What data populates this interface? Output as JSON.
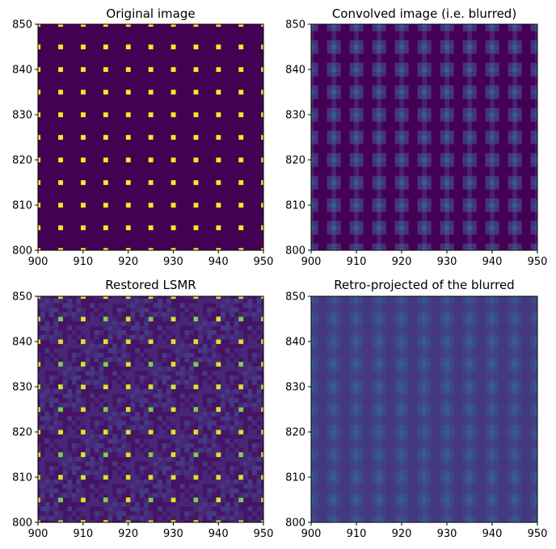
{
  "chart_data": [
    {
      "type": "heatmap",
      "title": "Original image",
      "xlim": [
        900,
        950
      ],
      "ylim": [
        800,
        850
      ],
      "xticks": [
        "900",
        "910",
        "920",
        "930",
        "940",
        "950"
      ],
      "yticks": [
        "800",
        "810",
        "820",
        "830",
        "840",
        "850"
      ],
      "colormap": "viridis",
      "pattern": "impulse grid: value 1 at every 5th pixel in x and y, 0 elsewhere",
      "spacing": 5,
      "background_value": 0.0,
      "peak_value": 1.0
    },
    {
      "type": "heatmap",
      "title": "Convolved image (i.e. blurred)",
      "xlim": [
        900,
        950
      ],
      "ylim": [
        800,
        850
      ],
      "xticks": [
        "900",
        "910",
        "920",
        "930",
        "940",
        "950"
      ],
      "yticks": [
        "800",
        "810",
        "820",
        "830",
        "840",
        "850"
      ],
      "colormap": "viridis",
      "pattern": "impulses blurred by a small kernel",
      "spacing": 5,
      "background_value": 0.0,
      "peak_value": 0.3
    },
    {
      "type": "heatmap",
      "title": "Restored LSMR",
      "xlim": [
        900,
        950
      ],
      "ylim": [
        800,
        850
      ],
      "xticks": [
        "900",
        "910",
        "920",
        "930",
        "940",
        "950"
      ],
      "yticks": [
        "800",
        "810",
        "820",
        "830",
        "840",
        "850"
      ],
      "colormap": "viridis",
      "pattern": "restored impulses with checkerboard-like artifacts",
      "spacing": 5,
      "background_value": 0.05,
      "peak_value": 0.8
    },
    {
      "type": "heatmap",
      "title": "Retro-projected of the blurred",
      "xlim": [
        900,
        950
      ],
      "ylim": [
        800,
        850
      ],
      "xticks": [
        "900",
        "910",
        "920",
        "930",
        "940",
        "950"
      ],
      "yticks": [
        "800",
        "810",
        "820",
        "830",
        "840",
        "850"
      ],
      "colormap": "viridis",
      "pattern": "smooth low-contrast periodic blur",
      "spacing": 5,
      "background_value": 0.16,
      "peak_value": 0.3
    }
  ]
}
